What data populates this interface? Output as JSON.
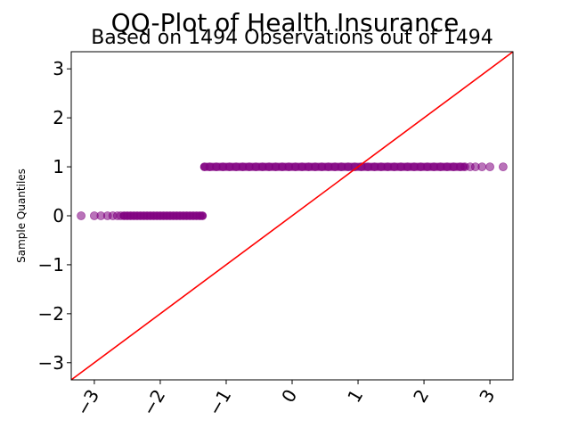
{
  "chart_data": {
    "type": "scatter",
    "title": "QQ-Plot of Health Insurance",
    "subtitle": "Based on 1494 Observations out of 1494",
    "xlabel": "",
    "ylabel": "Sample Quantiles",
    "xlim": [
      -3.35,
      3.35
    ],
    "ylim": [
      -3.35,
      3.35
    ],
    "xticks": [
      "−3",
      "−2",
      "−1",
      "0",
      "1",
      "2",
      "3"
    ],
    "xtick_values": [
      -3,
      -2,
      -1,
      0,
      1,
      2,
      3
    ],
    "yticks": [
      "−3",
      "−2",
      "−1",
      "0",
      "1",
      "2",
      "3"
    ],
    "ytick_values": [
      -3,
      -2,
      -1,
      0,
      1,
      2,
      3
    ],
    "grid": false,
    "colors": {
      "points": "#800080",
      "reference_line": "#ff0000",
      "axes": "#000000"
    },
    "reference_line": {
      "slope": 1,
      "intercept": 0
    },
    "series": [
      {
        "points": [
          [
            -3.2,
            0
          ],
          [
            -3.0,
            0
          ],
          [
            -2.9,
            0
          ],
          [
            -2.8,
            0
          ],
          [
            -2.72,
            0
          ],
          [
            -2.65,
            0
          ],
          [
            -2.6,
            0
          ],
          [
            -2.55,
            0
          ],
          [
            -2.5,
            0
          ],
          [
            -2.45,
            0
          ],
          [
            -2.4,
            0
          ],
          [
            -2.35,
            0
          ],
          [
            -2.3,
            0
          ],
          [
            -2.25,
            0
          ],
          [
            -2.2,
            0
          ],
          [
            -2.15,
            0
          ],
          [
            -2.1,
            0
          ],
          [
            -2.05,
            0
          ],
          [
            -2.0,
            0
          ],
          [
            -1.95,
            0
          ],
          [
            -1.9,
            0
          ],
          [
            -1.85,
            0
          ],
          [
            -1.8,
            0
          ],
          [
            -1.75,
            0
          ],
          [
            -1.7,
            0
          ],
          [
            -1.65,
            0
          ],
          [
            -1.6,
            0
          ],
          [
            -1.55,
            0
          ],
          [
            -1.5,
            0
          ],
          [
            -1.45,
            0
          ],
          [
            -1.4,
            0
          ],
          [
            -1.36,
            0
          ],
          [
            -1.33,
            1
          ],
          [
            -1.25,
            1
          ],
          [
            -1.15,
            1
          ],
          [
            -1.05,
            1
          ],
          [
            -0.95,
            1
          ],
          [
            -0.85,
            1
          ],
          [
            -0.75,
            1
          ],
          [
            -0.65,
            1
          ],
          [
            -0.55,
            1
          ],
          [
            -0.45,
            1
          ],
          [
            -0.35,
            1
          ],
          [
            -0.25,
            1
          ],
          [
            -0.15,
            1
          ],
          [
            -0.05,
            1
          ],
          [
            0.05,
            1
          ],
          [
            0.15,
            1
          ],
          [
            0.25,
            1
          ],
          [
            0.35,
            1
          ],
          [
            0.45,
            1
          ],
          [
            0.55,
            1
          ],
          [
            0.65,
            1
          ],
          [
            0.75,
            1
          ],
          [
            0.85,
            1
          ],
          [
            0.95,
            1
          ],
          [
            1.05,
            1
          ],
          [
            1.15,
            1
          ],
          [
            1.25,
            1
          ],
          [
            1.35,
            1
          ],
          [
            1.45,
            1
          ],
          [
            1.55,
            1
          ],
          [
            1.65,
            1
          ],
          [
            1.75,
            1
          ],
          [
            1.85,
            1
          ],
          [
            1.95,
            1
          ],
          [
            2.05,
            1
          ],
          [
            2.15,
            1
          ],
          [
            2.25,
            1
          ],
          [
            2.35,
            1
          ],
          [
            2.45,
            1
          ],
          [
            2.55,
            1
          ],
          [
            2.62,
            1
          ],
          [
            2.7,
            1
          ],
          [
            2.78,
            1
          ],
          [
            2.88,
            1
          ],
          [
            3.0,
            1
          ],
          [
            3.2,
            1
          ]
        ]
      }
    ]
  }
}
